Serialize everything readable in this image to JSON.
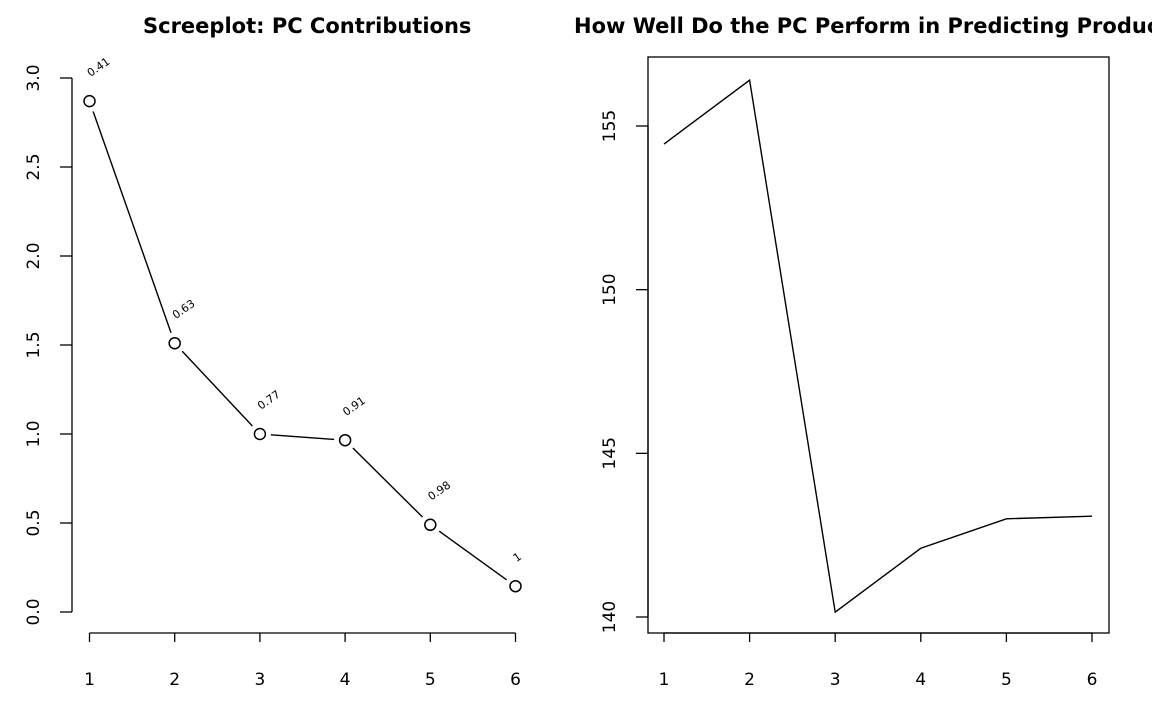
{
  "chart_data": [
    {
      "type": "line",
      "title": "Screeplot: PC Contributions",
      "x": [
        1,
        2,
        3,
        4,
        5,
        6
      ],
      "series": [
        {
          "values": [
            2.87,
            1.51,
            1.0,
            0.965,
            0.49,
            0.145
          ]
        }
      ],
      "point_labels": [
        "0.41",
        "0.63",
        "0.77",
        "0.91",
        "0.98",
        "1"
      ],
      "xlabel": "",
      "ylabel": "",
      "xticks": [
        "1",
        "2",
        "3",
        "4",
        "5",
        "6"
      ],
      "yticks": [
        "0.0",
        "0.5",
        "1.0",
        "1.5",
        "2.0",
        "2.5",
        "3.0"
      ],
      "ylim": [
        0,
        3
      ],
      "markers": "open-circle",
      "box": false,
      "grid": false
    },
    {
      "type": "line",
      "title": "How Well Do the PC Perform in Predicting Producti",
      "x": [
        1,
        2,
        3,
        4,
        5,
        6
      ],
      "series": [
        {
          "values": [
            154.45,
            156.4,
            140.15,
            142.1,
            143.0,
            143.08
          ]
        }
      ],
      "xlabel": "",
      "ylabel": "",
      "xticks": [
        "1",
        "2",
        "3",
        "4",
        "5",
        "6"
      ],
      "yticks": [
        "140",
        "145",
        "150",
        "155"
      ],
      "ylim": [
        140,
        155
      ],
      "markers": "none",
      "box": true,
      "grid": false
    }
  ]
}
